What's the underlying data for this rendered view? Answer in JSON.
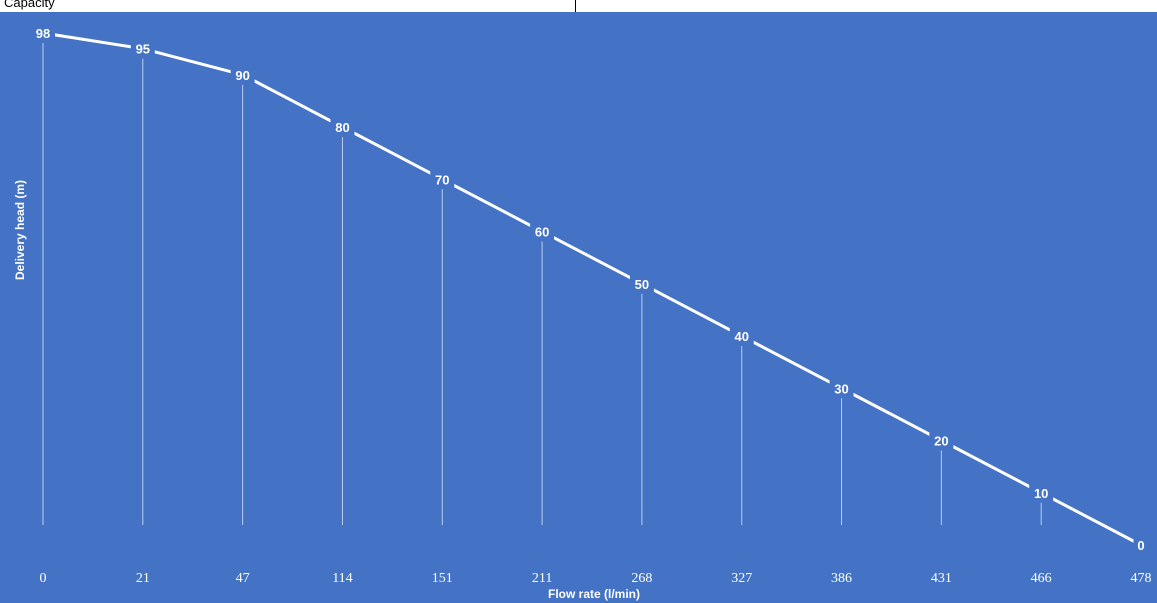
{
  "top_strip": {
    "text": "Capacity"
  },
  "colors": {
    "background": "#4472c4",
    "line": "#ffffff",
    "drop": "#e6ecf8",
    "text": "#ffffff"
  },
  "chart_data": {
    "type": "line",
    "xlabel": "Flow rate (l/min)",
    "ylabel": "Delivery head (m)",
    "categories": [
      "0",
      "21",
      "47",
      "114",
      "151",
      "211",
      "268",
      "327",
      "386",
      "431",
      "466",
      "478"
    ],
    "series": [
      {
        "values": [
          98,
          95,
          90,
          80,
          70,
          60,
          50,
          40,
          30,
          20,
          10,
          0
        ]
      }
    ],
    "ylim": [
      0,
      100
    ],
    "grid": false,
    "drop_lines": true,
    "data_labels": true,
    "legend": "none"
  }
}
